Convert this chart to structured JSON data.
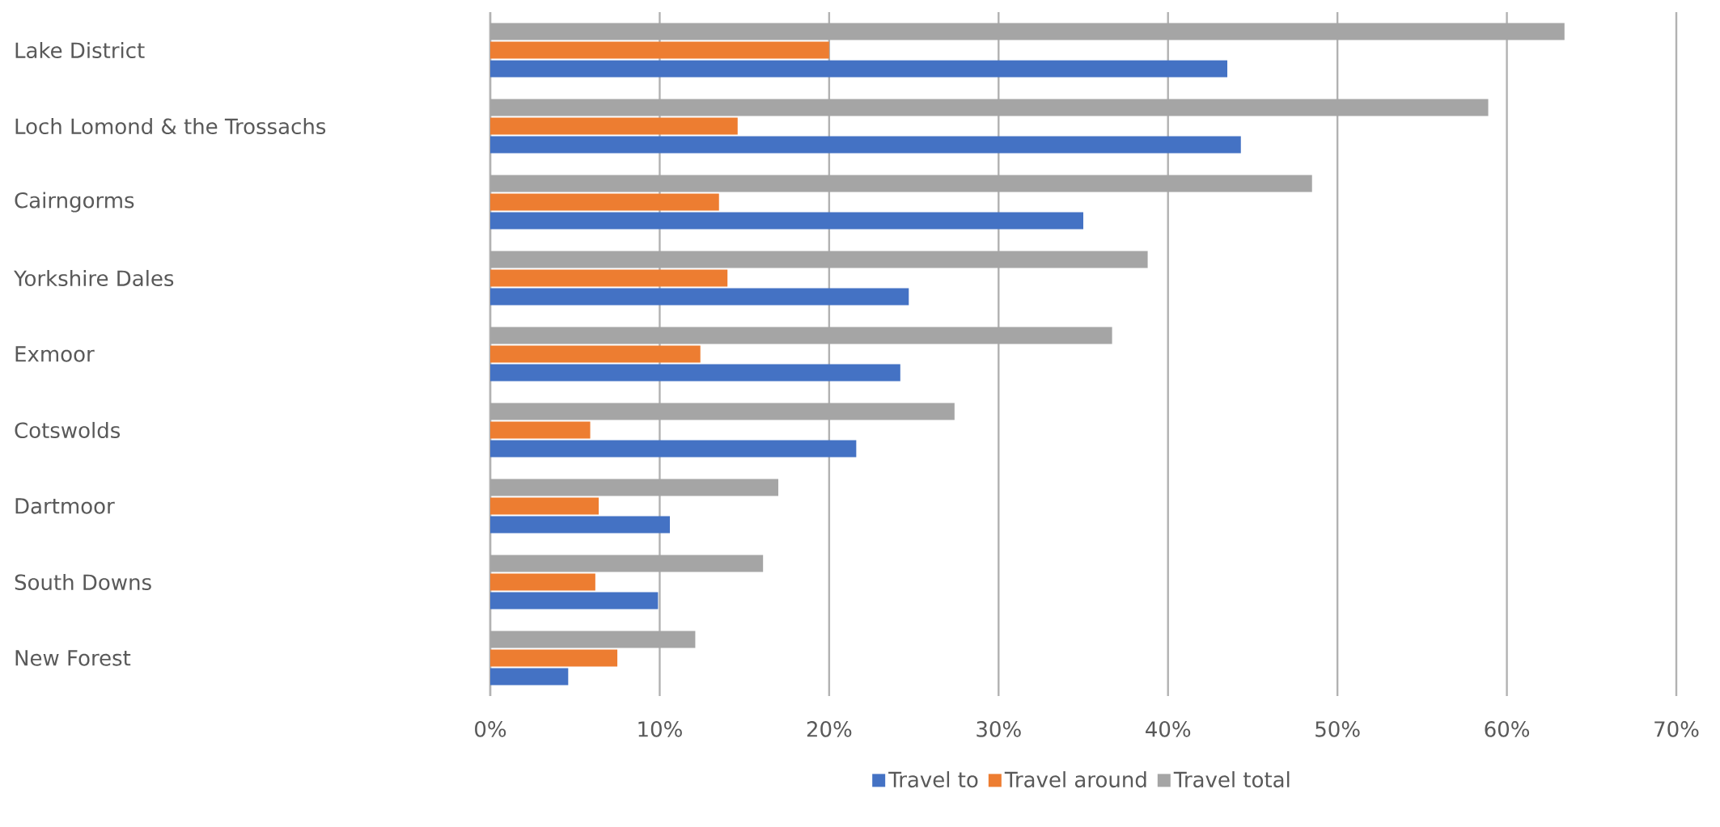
{
  "chart_data": {
    "type": "bar",
    "orientation": "horizontal",
    "categories": [
      "Lake District",
      "Loch Lomond & the Trossachs",
      "Cairngorms",
      "Yorkshire Dales",
      "Exmoor",
      "Cotswolds",
      "Dartmoor",
      "South Downs",
      "New Forest"
    ],
    "series": [
      {
        "name": "Travel to",
        "color": "#4472c4",
        "values": [
          43.5,
          44.3,
          35.0,
          24.7,
          24.2,
          21.6,
          10.6,
          9.9,
          4.6
        ]
      },
      {
        "name": "Travel around",
        "color": "#ed7d31",
        "values": [
          20.0,
          14.6,
          13.5,
          14.0,
          12.4,
          5.9,
          6.4,
          6.2,
          7.5
        ]
      },
      {
        "name": "Travel total",
        "color": "#a5a5a5",
        "values": [
          63.4,
          58.9,
          48.5,
          38.8,
          36.7,
          27.4,
          17.0,
          16.1,
          12.1
        ]
      }
    ],
    "xlim": [
      0,
      70
    ],
    "xticks": [
      {
        "value": 0,
        "label": "0%"
      },
      {
        "value": 10,
        "label": "10%"
      },
      {
        "value": 20,
        "label": "20%"
      },
      {
        "value": 30,
        "label": "30%"
      },
      {
        "value": 40,
        "label": "40%"
      },
      {
        "value": 50,
        "label": "50%"
      },
      {
        "value": 60,
        "label": "60%"
      },
      {
        "value": 70,
        "label": "70%"
      }
    ],
    "grid": "x",
    "legend": "bottom"
  }
}
